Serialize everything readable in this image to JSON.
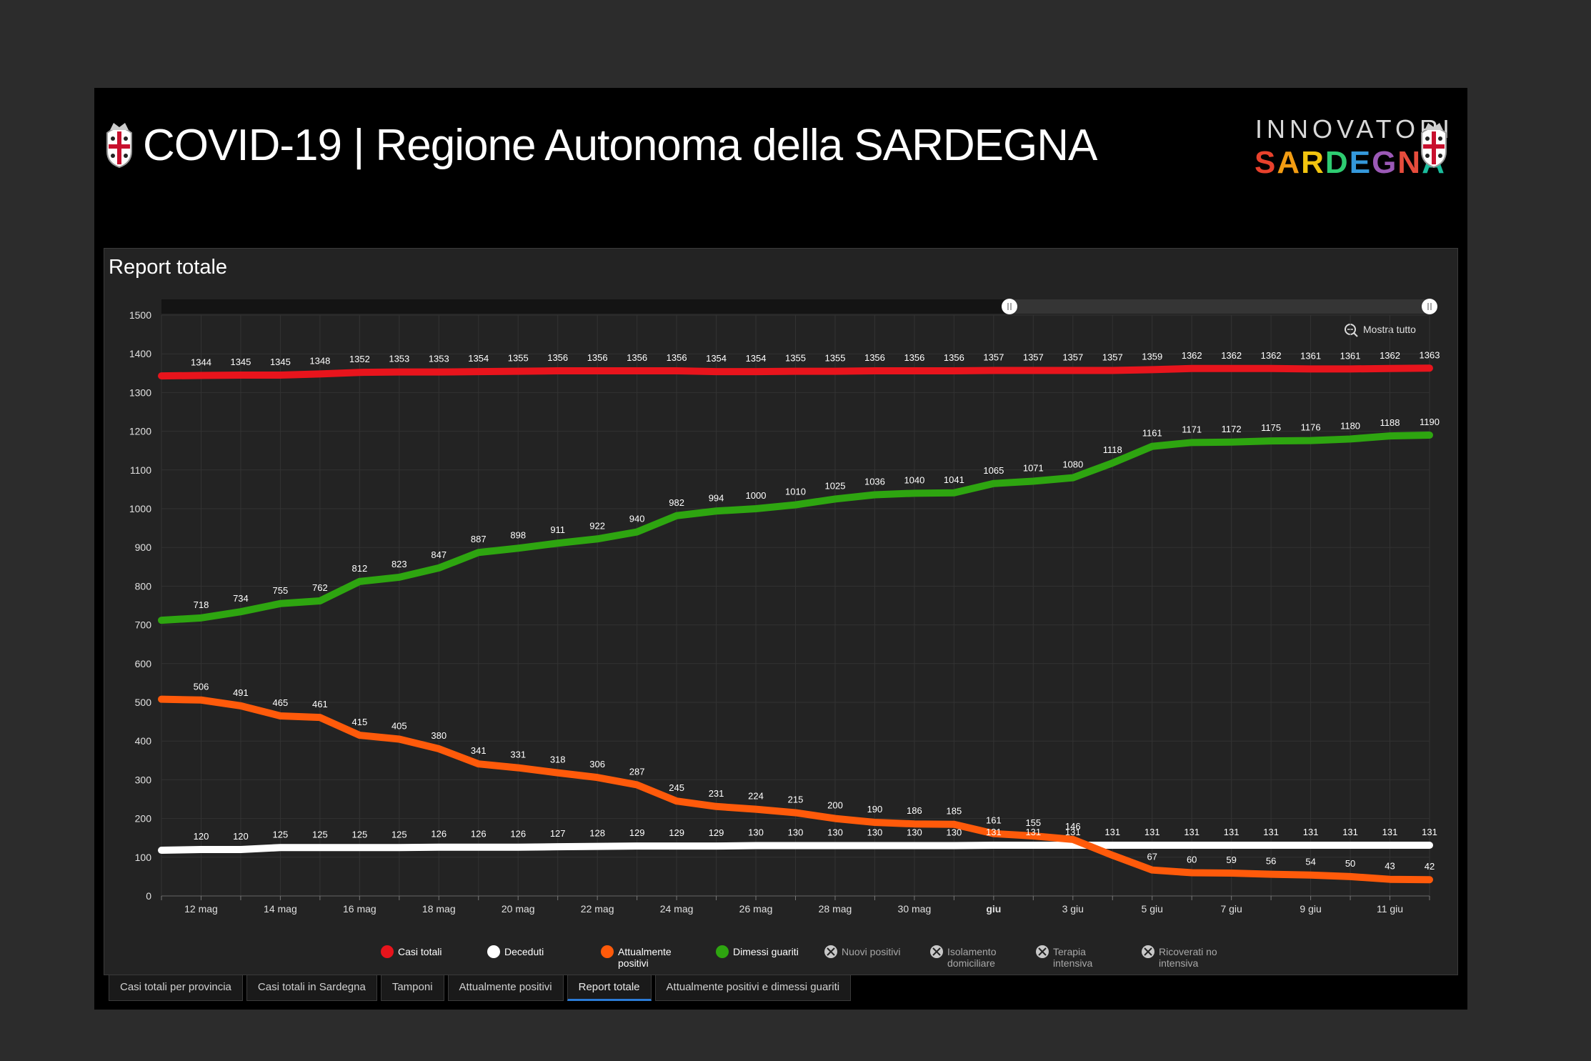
{
  "header": {
    "title": "COVID-19 | Regione Autonoma della SARDEGNA",
    "brand_top": "INNOVATORI",
    "brand_bottom": "SARDEGNA",
    "brand_colors": [
      "#e8412c",
      "#f39c12",
      "#f1c40f",
      "#2ecc71",
      "#3498db",
      "#9b59b6",
      "#e74c3c",
      "#1abc9c"
    ]
  },
  "panel": {
    "title": "Report totale",
    "zoom_label": "Mostra tutto"
  },
  "tabs": [
    {
      "label": "Casi totali per provincia",
      "active": false
    },
    {
      "label": "Casi totali in Sardegna",
      "active": false
    },
    {
      "label": "Tamponi",
      "active": false
    },
    {
      "label": "Attualmente positivi",
      "active": false
    },
    {
      "label": "Report totale",
      "active": true
    },
    {
      "label": "Attualmente positivi e dimessi guariti",
      "active": false
    }
  ],
  "chart_data": {
    "type": "line",
    "ylim": [
      0,
      1500
    ],
    "yticks": [
      0,
      100,
      200,
      300,
      400,
      500,
      600,
      700,
      800,
      900,
      1000,
      1100,
      1200,
      1300,
      1400,
      1500
    ],
    "grid": true,
    "x": [
      "11 mag",
      "12 mag",
      "13 mag",
      "14 mag",
      "15 mag",
      "16 mag",
      "17 mag",
      "18 mag",
      "19 mag",
      "20 mag",
      "21 mag",
      "22 mag",
      "23 mag",
      "24 mag",
      "25 mag",
      "26 mag",
      "27 mag",
      "28 mag",
      "29 mag",
      "30 mag",
      "31 mag",
      "1 giu",
      "2 giu",
      "3 giu",
      "4 giu",
      "5 giu",
      "6 giu",
      "7 giu",
      "8 giu",
      "9 giu",
      "10 giu",
      "11 giu",
      "12 giu"
    ],
    "xtick_labels": [
      {
        "index": 1,
        "label": "12 mag",
        "bold": false
      },
      {
        "index": 3,
        "label": "14 mag",
        "bold": false
      },
      {
        "index": 5,
        "label": "16 mag",
        "bold": false
      },
      {
        "index": 7,
        "label": "18 mag",
        "bold": false
      },
      {
        "index": 9,
        "label": "20 mag",
        "bold": false
      },
      {
        "index": 11,
        "label": "22 mag",
        "bold": false
      },
      {
        "index": 13,
        "label": "24 mag",
        "bold": false
      },
      {
        "index": 15,
        "label": "26 mag",
        "bold": false
      },
      {
        "index": 17,
        "label": "28 mag",
        "bold": false
      },
      {
        "index": 19,
        "label": "30 mag",
        "bold": false
      },
      {
        "index": 21,
        "label": "giu",
        "bold": true
      },
      {
        "index": 23,
        "label": "3 giu",
        "bold": false
      },
      {
        "index": 25,
        "label": "5 giu",
        "bold": false
      },
      {
        "index": 27,
        "label": "7 giu",
        "bold": false
      },
      {
        "index": 29,
        "label": "9 giu",
        "bold": false
      },
      {
        "index": 31,
        "label": "11 giu",
        "bold": false
      }
    ],
    "series": [
      {
        "name": "Casi totali",
        "color": "#e8141c",
        "values": [
          1343,
          1344,
          1345,
          1345,
          1348,
          1352,
          1353,
          1353,
          1354,
          1355,
          1356,
          1356,
          1356,
          1356,
          1354,
          1354,
          1355,
          1355,
          1356,
          1356,
          1356,
          1357,
          1357,
          1357,
          1357,
          1359,
          1362,
          1362,
          1362,
          1361,
          1361,
          1362,
          1363
        ]
      },
      {
        "name": "Deceduti",
        "color": "#ffffff",
        "values": [
          118,
          120,
          120,
          125,
          125,
          125,
          125,
          126,
          126,
          126,
          127,
          128,
          129,
          129,
          129,
          130,
          130,
          130,
          130,
          130,
          130,
          131,
          131,
          131,
          131,
          131,
          131,
          131,
          131,
          131,
          131,
          131,
          131
        ]
      },
      {
        "name": "Attualmente positivi",
        "color": "#ff5a0a",
        "values": [
          508,
          506,
          491,
          465,
          461,
          415,
          405,
          380,
          341,
          331,
          318,
          306,
          287,
          245,
          231,
          224,
          215,
          200,
          190,
          186,
          185,
          161,
          155,
          146,
          105,
          67,
          60,
          59,
          56,
          54,
          50,
          43,
          42
        ]
      },
      {
        "name": "Dimessi guariti",
        "color": "#2ea510",
        "values": [
          712,
          718,
          734,
          755,
          762,
          812,
          823,
          847,
          887,
          898,
          911,
          922,
          940,
          982,
          994,
          1000,
          1010,
          1025,
          1036,
          1040,
          1041,
          1065,
          1071,
          1080,
          1118,
          1161,
          1171,
          1172,
          1175,
          1176,
          1180,
          1188,
          1190
        ]
      }
    ],
    "point_labels": {
      "Casi totali": [
        "",
        "1344",
        "1345",
        "1345",
        "1348",
        "1352",
        "1353",
        "1353",
        "1354",
        "1355",
        "1356",
        "1356",
        "1356",
        "1356",
        "1354",
        "1354",
        "1355",
        "1355",
        "1356",
        "1356",
        "1356",
        "1357",
        "1357",
        "1357",
        "1357",
        "1359",
        "1362",
        "1362",
        "1362",
        "1361",
        "1361",
        "1362",
        "1363"
      ],
      "Deceduti": [
        "",
        "120",
        "120",
        "125",
        "125",
        "125",
        "125",
        "126",
        "126",
        "126",
        "127",
        "128",
        "129",
        "129",
        "129",
        "130",
        "130",
        "130",
        "130",
        "130",
        "130",
        "131",
        "131",
        "131",
        "131",
        "131",
        "131",
        "131",
        "131",
        "131",
        "131",
        "131",
        "131"
      ],
      "Attualmente positivi": [
        "",
        "506",
        "491",
        "465",
        "461",
        "415",
        "405",
        "380",
        "341",
        "331",
        "318",
        "306",
        "287",
        "245",
        "231",
        "224",
        "215",
        "200",
        "190",
        "186",
        "185",
        "161",
        "155",
        "146",
        "",
        "67",
        "60",
        "59",
        "56",
        "54",
        "50",
        "43",
        "42"
      ],
      "Dimessi guariti": [
        "",
        "718",
        "734",
        "755",
        "762",
        "812",
        "823",
        "847",
        "887",
        "898",
        "911",
        "922",
        "940",
        "982",
        "994",
        "1000",
        "1010",
        "1025",
        "1036",
        "1040",
        "1041",
        "1065",
        "1071",
        "1080",
        "1118",
        "1161",
        "1171",
        "1172",
        "1175",
        "1176",
        "1180",
        "1188",
        "1190"
      ]
    },
    "legend": [
      {
        "label": "Casi totali",
        "color": "#e8141c",
        "enabled": true
      },
      {
        "label": "Deceduti",
        "color": "#ffffff",
        "enabled": true
      },
      {
        "label": "Attualmente positivi",
        "color": "#ff5a0a",
        "enabled": true
      },
      {
        "label": "Dimessi guariti",
        "color": "#2ea510",
        "enabled": true
      },
      {
        "label": "Nuovi positivi",
        "color": "#9a9a9a",
        "enabled": false
      },
      {
        "label": "Isolamento domiciliare",
        "color": "#9a9a9a",
        "enabled": false
      },
      {
        "label": "Terapia intensiva",
        "color": "#9a9a9a",
        "enabled": false
      },
      {
        "label": "Ricoverati no intensiva",
        "color": "#9a9a9a",
        "enabled": false
      }
    ],
    "legend_placement": "bottom"
  }
}
